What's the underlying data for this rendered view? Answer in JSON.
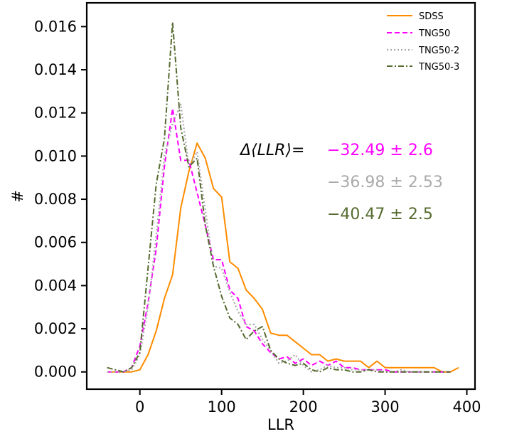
{
  "chart_data": {
    "type": "line",
    "xlabel": "LLR",
    "ylabel": "#",
    "xlim": [
      -65,
      410
    ],
    "ylim": [
      -0.0008,
      0.0171
    ],
    "xticks": [
      {
        "value": 0,
        "label": "0"
      },
      {
        "value": 100,
        "label": "100"
      },
      {
        "value": 200,
        "label": "200"
      },
      {
        "value": 300,
        "label": "300"
      },
      {
        "value": 400,
        "label": "400"
      }
    ],
    "yticks": [
      {
        "value": 0.0,
        "label": "0.000"
      },
      {
        "value": 0.002,
        "label": "0.002"
      },
      {
        "value": 0.004,
        "label": "0.004"
      },
      {
        "value": 0.006,
        "label": "0.006"
      },
      {
        "value": 0.008,
        "label": "0.008"
      },
      {
        "value": 0.01,
        "label": "0.010"
      },
      {
        "value": 0.012,
        "label": "0.012"
      },
      {
        "value": 0.014,
        "label": "0.014"
      },
      {
        "value": 0.016,
        "label": "0.016"
      }
    ],
    "grid": false,
    "legend_position": "top-right",
    "series": [
      {
        "name": "SDSS",
        "color": "#ff8c00",
        "dash": "solid",
        "x": [
          -40,
          -30,
          -20,
          -10,
          0,
          10,
          20,
          30,
          40,
          50,
          60,
          70,
          80,
          90,
          100,
          110,
          120,
          130,
          140,
          150,
          160,
          170,
          180,
          190,
          200,
          210,
          220,
          230,
          240,
          250,
          260,
          270,
          280,
          290,
          300,
          310,
          320,
          330,
          340,
          350,
          360,
          370,
          380,
          390
        ],
        "y": [
          0.0,
          0.0,
          0.0,
          0.0,
          0.0001,
          0.0008,
          0.0019,
          0.0034,
          0.0045,
          0.0076,
          0.0093,
          0.0106,
          0.0099,
          0.0085,
          0.0081,
          0.0051,
          0.0048,
          0.0038,
          0.0034,
          0.0029,
          0.0018,
          0.0017,
          0.0017,
          0.0014,
          0.0011,
          0.0008,
          0.0008,
          0.0005,
          0.0006,
          0.0005,
          0.0005,
          0.0005,
          0.0002,
          0.0005,
          0.0002,
          0.0002,
          0.0002,
          0.0002,
          0.0002,
          0.0002,
          0.0002,
          0.0,
          0.0,
          0.0002
        ]
      },
      {
        "name": "TNG50",
        "color": "#ff00ff",
        "dash": "dashed",
        "x": [
          -40,
          -30,
          -20,
          -10,
          0,
          10,
          20,
          30,
          40,
          50,
          60,
          70,
          80,
          90,
          100,
          110,
          120,
          130,
          140,
          150,
          160,
          170,
          180,
          190,
          200,
          210,
          220,
          230,
          240,
          250,
          260,
          270,
          280,
          290,
          300,
          310,
          320,
          330,
          340,
          350,
          360,
          370,
          380
        ],
        "y": [
          0.0,
          0.0,
          0.0,
          0.0002,
          0.0012,
          0.0032,
          0.0057,
          0.0095,
          0.0122,
          0.0098,
          0.0098,
          0.0083,
          0.0068,
          0.0052,
          0.0052,
          0.0038,
          0.0034,
          0.0021,
          0.0019,
          0.0013,
          0.0009,
          0.0006,
          0.0007,
          0.0004,
          0.0006,
          0.0003,
          0.0005,
          0.0003,
          0.0005,
          0.0002,
          0.0002,
          0.0001,
          0.0001,
          0.0001,
          0.0001,
          0.0,
          0.0,
          0.0,
          0.0,
          0.0,
          0.0,
          0.0,
          0.0
        ]
      },
      {
        "name": "TNG50-2",
        "color": "#aaaaaa",
        "dash": "dotted",
        "x": [
          -40,
          -30,
          -20,
          -10,
          0,
          10,
          20,
          30,
          40,
          50,
          60,
          70,
          80,
          90,
          100,
          110,
          120,
          130,
          140,
          150,
          160,
          170,
          180,
          190,
          200,
          210,
          220,
          230,
          240,
          250,
          260,
          270,
          280,
          290,
          300,
          310,
          320,
          330,
          340,
          350,
          360,
          370,
          380
        ],
        "y": [
          0.0,
          0.0,
          0.0,
          0.0001,
          0.0008,
          0.003,
          0.0063,
          0.01,
          0.0115,
          0.0124,
          0.0095,
          0.0102,
          0.0075,
          0.0049,
          0.0048,
          0.0037,
          0.0028,
          0.0022,
          0.0022,
          0.0015,
          0.001,
          0.0004,
          0.0005,
          0.0008,
          0.0003,
          0.0,
          0.0001,
          0.0003,
          0.0002,
          0.0002,
          0.0001,
          0.0001,
          0.0001,
          0.0001,
          0.0,
          0.0,
          0.0001,
          0.0,
          0.0,
          0.0,
          0.0,
          0.0,
          0.0
        ]
      },
      {
        "name": "TNG50-3",
        "color": "#556b2f",
        "dash": "dashdot",
        "x": [
          -40,
          -30,
          -20,
          -10,
          0,
          10,
          20,
          30,
          40,
          50,
          60,
          70,
          80,
          90,
          100,
          110,
          120,
          130,
          140,
          150,
          160,
          170,
          180,
          190,
          200,
          210,
          220,
          230,
          240,
          250,
          260,
          270,
          280,
          290,
          300,
          310,
          320,
          330,
          340,
          350,
          360,
          370,
          380
        ],
        "y": [
          0.0002,
          0.0001,
          0.0,
          0.0002,
          0.0009,
          0.0048,
          0.0087,
          0.0108,
          0.0162,
          0.0113,
          0.0095,
          0.0099,
          0.0068,
          0.0049,
          0.0035,
          0.0025,
          0.0022,
          0.0015,
          0.0019,
          0.0021,
          0.001,
          0.0006,
          0.0004,
          0.0003,
          0.0004,
          0.0001,
          0.0,
          0.0002,
          0.0001,
          0.0001,
          0.0,
          0.0,
          0.0001,
          0.0,
          0.0,
          0.0,
          0.0,
          0.0,
          0.0,
          0.0,
          0.0,
          0.0,
          0.0
        ]
      }
    ],
    "annotations": {
      "label": "Δ⟨LLR⟩=",
      "entries": [
        {
          "text": "−32.49 ± 2.6",
          "color": "#ff00ff"
        },
        {
          "text": "−36.98 ± 2.53",
          "color": "#aaaaaa"
        },
        {
          "text": "−40.47 ± 2.5",
          "color": "#556b2f"
        }
      ]
    }
  }
}
